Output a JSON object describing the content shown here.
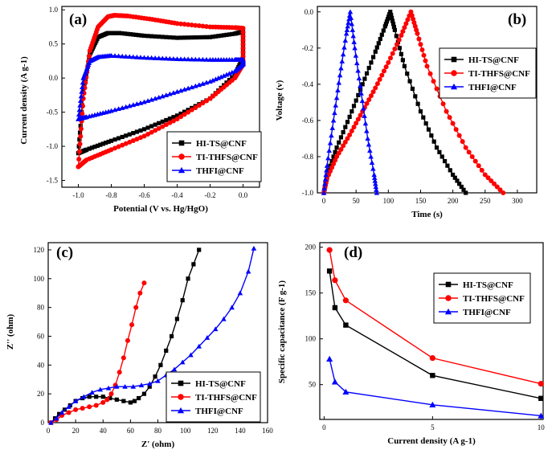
{
  "chart_data": [
    {
      "panel": "(a)",
      "type": "line",
      "xlabel": "Potential (V vs. Hg/HgO)",
      "ylabel": "Current density (A g-1)",
      "xlim": [
        -1.1,
        0.1
      ],
      "ylim": [
        -1.6,
        1.05
      ],
      "xticks": [
        -1.0,
        -0.8,
        -0.6,
        -0.4,
        -0.2,
        0.0
      ],
      "xtick_labels": [
        "-1.0",
        "-0.8",
        "-0.6",
        "-0.4",
        "-0.2",
        "0.0"
      ],
      "yticks": [
        -1.5,
        -1.0,
        -0.5,
        0.0,
        0.5,
        1.0
      ],
      "ytick_labels": [
        "-1.5",
        "-1.0",
        "-0.5",
        "0.0",
        "0.5",
        "1.0"
      ],
      "legend_position": "bottom-right",
      "series": [
        {
          "name": "HI-TS@CNF",
          "color": "#000000",
          "marker": "square",
          "x": [
            -1.0,
            -0.97,
            -0.93,
            -0.88,
            -0.82,
            -0.75,
            -0.6,
            -0.4,
            -0.2,
            -0.05,
            0.0,
            0.0,
            -0.05,
            -0.2,
            -0.4,
            -0.6,
            -0.8,
            -0.95,
            -1.0
          ],
          "y": [
            -1.1,
            -0.2,
            0.35,
            0.6,
            0.66,
            0.66,
            0.62,
            0.59,
            0.6,
            0.65,
            0.68,
            0.3,
            0.05,
            -0.3,
            -0.55,
            -0.75,
            -0.92,
            -1.05,
            -1.1
          ]
        },
        {
          "name": "TI-THFS@CNF",
          "color": "#ff0000",
          "marker": "circle",
          "x": [
            -1.0,
            -0.97,
            -0.93,
            -0.88,
            -0.82,
            -0.78,
            -0.7,
            -0.55,
            -0.4,
            -0.2,
            -0.05,
            0.0,
            0.0,
            -0.05,
            -0.2,
            -0.4,
            -0.6,
            -0.8,
            -0.95,
            -1.0
          ],
          "y": [
            -1.3,
            -0.3,
            0.4,
            0.75,
            0.9,
            0.92,
            0.91,
            0.86,
            0.8,
            0.75,
            0.74,
            0.73,
            0.2,
            0.0,
            -0.3,
            -0.6,
            -0.85,
            -1.05,
            -1.2,
            -1.3
          ]
        },
        {
          "name": "THFI@CNF",
          "color": "#0000ff",
          "marker": "triangle",
          "x": [
            -1.0,
            -0.97,
            -0.93,
            -0.88,
            -0.8,
            -0.6,
            -0.4,
            -0.2,
            -0.05,
            0.0,
            0.0,
            -0.05,
            -0.2,
            -0.4,
            -0.6,
            -0.8,
            -0.95,
            -1.0
          ],
          "y": [
            -0.6,
            0.0,
            0.25,
            0.31,
            0.33,
            0.3,
            0.28,
            0.27,
            0.27,
            0.27,
            0.2,
            0.1,
            -0.05,
            -0.2,
            -0.35,
            -0.48,
            -0.57,
            -0.6
          ]
        }
      ]
    },
    {
      "panel": "(b)",
      "type": "line",
      "xlabel": "Time (s)",
      "ylabel": "Voltage (v)",
      "xlim": [
        -10,
        330
      ],
      "ylim": [
        -1.0,
        0.03
      ],
      "xticks": [
        0,
        50,
        100,
        150,
        200,
        250,
        300
      ],
      "xtick_labels": [
        "0",
        "50",
        "100",
        "150",
        "200",
        "250",
        "300"
      ],
      "yticks": [
        -1.0,
        -0.8,
        -0.6,
        -0.4,
        -0.2,
        0.0
      ],
      "ytick_labels": [
        "-1.0",
        "-0.8",
        "-0.6",
        "-0.4",
        "-0.2",
        "0.0"
      ],
      "legend_position": "top-right",
      "series": [
        {
          "name": "HI-TS@CNF",
          "color": "#000000",
          "marker": "square",
          "x": [
            0,
            5,
            20,
            40,
            60,
            80,
            95,
            103,
            110,
            125,
            150,
            175,
            200,
            220
          ],
          "y": [
            -1.0,
            -0.9,
            -0.75,
            -0.58,
            -0.4,
            -0.22,
            -0.08,
            0.0,
            -0.1,
            -0.3,
            -0.55,
            -0.75,
            -0.9,
            -1.0
          ]
        },
        {
          "name": "TI-THFS@CNF",
          "color": "#ff0000",
          "marker": "circle",
          "x": [
            0,
            5,
            20,
            40,
            60,
            80,
            100,
            120,
            135,
            145,
            160,
            190,
            220,
            250,
            278
          ],
          "y": [
            -1.0,
            -0.92,
            -0.8,
            -0.68,
            -0.55,
            -0.42,
            -0.28,
            -0.13,
            0.0,
            -0.12,
            -0.3,
            -0.55,
            -0.75,
            -0.9,
            -1.0
          ]
        },
        {
          "name": "THFI@CNF",
          "color": "#0000ff",
          "marker": "triangle",
          "x": [
            0,
            5,
            15,
            25,
            35,
            41,
            48,
            58,
            68,
            78,
            82
          ],
          "y": [
            -1.0,
            -0.85,
            -0.6,
            -0.35,
            -0.12,
            0.0,
            -0.2,
            -0.45,
            -0.7,
            -0.9,
            -1.0
          ]
        }
      ]
    },
    {
      "panel": "(c)",
      "type": "scatter",
      "xlabel": "Z' (ohm)",
      "ylabel": "Z'' (ohm)",
      "xlim": [
        0,
        160
      ],
      "ylim": [
        0,
        125
      ],
      "xticks": [
        0,
        20,
        40,
        60,
        80,
        100,
        120,
        140,
        160
      ],
      "xtick_labels": [
        "0",
        "20",
        "40",
        "60",
        "80",
        "100",
        "120",
        "140",
        "160"
      ],
      "yticks": [
        0,
        20,
        40,
        60,
        80,
        100,
        120
      ],
      "ytick_labels": [
        "0",
        "20",
        "40",
        "60",
        "80",
        "100",
        "120"
      ],
      "legend_position": "bottom-right",
      "series": [
        {
          "name": "HI-TS@CNF",
          "color": "#000000",
          "marker": "square",
          "x": [
            2,
            5,
            8,
            12,
            16,
            20,
            25,
            30,
            35,
            40,
            45,
            50,
            55,
            60,
            63,
            66,
            70,
            74,
            78,
            82,
            86,
            90,
            94,
            98,
            102,
            106,
            110
          ],
          "y": [
            0,
            3,
            6,
            9,
            12,
            15,
            17,
            18,
            18,
            18,
            17,
            16,
            15,
            14,
            15,
            17,
            20,
            25,
            32,
            40,
            50,
            60,
            72,
            85,
            100,
            110,
            120
          ]
        },
        {
          "name": "TI-THFS@CNF",
          "color": "#ff0000",
          "marker": "circle",
          "x": [
            2,
            6,
            10,
            15,
            20,
            25,
            30,
            35,
            40,
            43,
            46,
            49,
            52,
            55,
            58,
            61,
            64,
            67,
            70
          ],
          "y": [
            0,
            2,
            5,
            7,
            9,
            10,
            11,
            12,
            14,
            16,
            20,
            26,
            35,
            45,
            57,
            68,
            80,
            90,
            97
          ]
        },
        {
          "name": "THFI@CNF",
          "color": "#0000ff",
          "marker": "triangle",
          "x": [
            2,
            6,
            10,
            15,
            20,
            26,
            32,
            38,
            44,
            50,
            56,
            62,
            68,
            74,
            80,
            86,
            92,
            98,
            104,
            110,
            116,
            122,
            128,
            134,
            140,
            146,
            150
          ],
          "y": [
            0,
            3,
            7,
            11,
            15,
            18,
            21,
            23,
            24,
            25,
            25,
            25,
            26,
            27,
            29,
            33,
            37,
            42,
            47,
            53,
            59,
            65,
            72,
            80,
            90,
            105,
            121
          ]
        }
      ]
    },
    {
      "panel": "(d)",
      "type": "line",
      "xlabel": "Current density (A g-1)",
      "ylabel": "Specific capacitance (F g-1)",
      "xlim": [
        -0.2,
        10.1
      ],
      "ylim": [
        12,
        205
      ],
      "xticks": [
        0,
        5,
        10
      ],
      "xtick_labels": [
        "0",
        "5",
        "10"
      ],
      "yticks": [
        50,
        100,
        150,
        200
      ],
      "ytick_labels": [
        "50",
        "100",
        "150",
        "200"
      ],
      "legend_position": "top-right",
      "series": [
        {
          "name": "HI-TS@CNF",
          "color": "#000000",
          "marker": "square",
          "x": [
            0.25,
            0.5,
            1,
            5,
            10
          ],
          "y": [
            174,
            134,
            115,
            60,
            35
          ]
        },
        {
          "name": "TI-THFS@CNF",
          "color": "#ff0000",
          "marker": "circle",
          "x": [
            0.25,
            0.5,
            1,
            5,
            10
          ],
          "y": [
            197,
            164,
            142,
            79,
            51
          ]
        },
        {
          "name": "THFI@CNF",
          "color": "#0000ff",
          "marker": "triangle",
          "x": [
            0.25,
            0.5,
            1,
            5,
            10
          ],
          "y": [
            78,
            53,
            42,
            28,
            16
          ]
        }
      ]
    }
  ]
}
